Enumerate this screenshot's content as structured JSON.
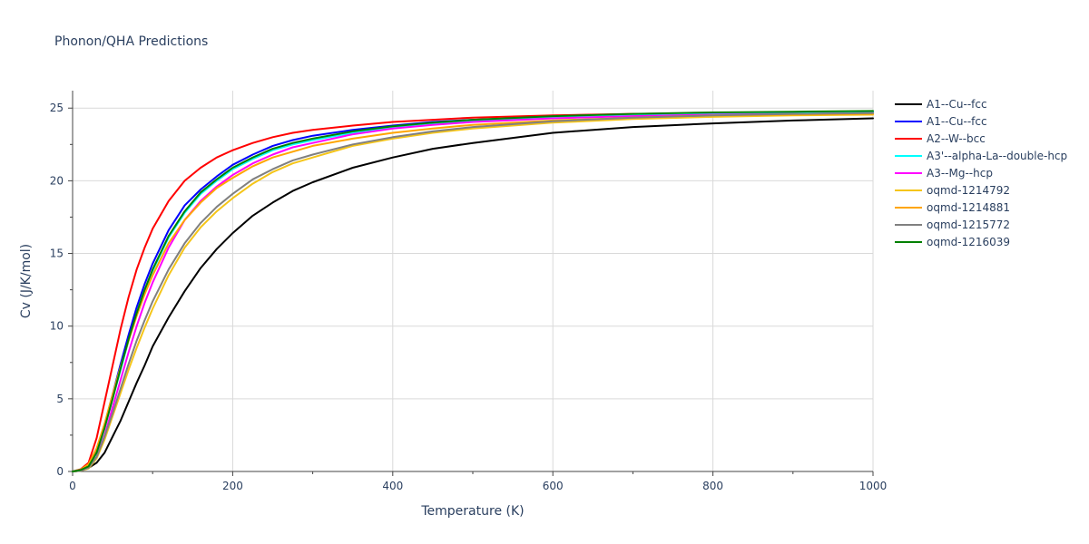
{
  "chart_data": {
    "type": "line",
    "title": "Phonon/QHA Predictions",
    "xlabel": "Temperature (K)",
    "ylabel": "Cv (J/K/mol)",
    "xlim": [
      0,
      1000
    ],
    "ylim": [
      0,
      26.2
    ],
    "xticks": [
      0,
      200,
      400,
      600,
      800,
      1000
    ],
    "xtick_labels": [
      "0",
      "200",
      "400",
      "600",
      "800",
      "1000"
    ],
    "yticks": [
      0,
      5,
      10,
      15,
      20,
      25
    ],
    "ytick_labels": [
      "0",
      "5",
      "10",
      "15",
      "20",
      "25"
    ],
    "grid": true,
    "legend_position": "right",
    "x": [
      0,
      10,
      20,
      30,
      40,
      50,
      60,
      70,
      80,
      90,
      100,
      120,
      140,
      160,
      180,
      200,
      225,
      250,
      275,
      300,
      350,
      400,
      450,
      500,
      600,
      700,
      800,
      900,
      1000
    ],
    "series": [
      {
        "name": "A1--Cu--fcc",
        "color": "#000000",
        "values": [
          0,
          0.05,
          0.25,
          0.6,
          1.3,
          2.4,
          3.5,
          4.8,
          6.1,
          7.3,
          8.6,
          10.6,
          12.4,
          14.0,
          15.3,
          16.4,
          17.6,
          18.5,
          19.3,
          19.9,
          20.9,
          21.6,
          22.2,
          22.6,
          23.3,
          23.7,
          23.95,
          24.15,
          24.3
        ]
      },
      {
        "name": "A1--Cu--fcc",
        "color": "#0000ff",
        "values": [
          0,
          0.1,
          0.35,
          1.4,
          3.2,
          5.3,
          7.4,
          9.4,
          11.3,
          12.9,
          14.3,
          16.6,
          18.3,
          19.4,
          20.3,
          21.1,
          21.8,
          22.4,
          22.8,
          23.1,
          23.5,
          23.8,
          24.05,
          24.2,
          24.4,
          24.55,
          24.65,
          24.7,
          24.75
        ]
      },
      {
        "name": "A2--W--bcc",
        "color": "#ff0000",
        "values": [
          0,
          0.15,
          0.6,
          2.3,
          4.8,
          7.3,
          9.8,
          12.0,
          13.9,
          15.4,
          16.7,
          18.6,
          20.0,
          20.9,
          21.6,
          22.1,
          22.6,
          23.0,
          23.3,
          23.5,
          23.8,
          24.05,
          24.2,
          24.35,
          24.5,
          24.6,
          24.65,
          24.7,
          24.72
        ]
      },
      {
        "name": "A3'--alpha-La--double-hcp",
        "color": "#00ffff",
        "values": [
          0,
          0.1,
          0.3,
          1.3,
          3.0,
          5.0,
          7.0,
          9.0,
          10.8,
          12.4,
          13.8,
          16.1,
          17.8,
          19.1,
          20.0,
          20.8,
          21.5,
          22.1,
          22.5,
          22.8,
          23.3,
          23.7,
          23.95,
          24.15,
          24.4,
          24.55,
          24.65,
          24.7,
          24.75
        ]
      },
      {
        "name": "A3--Mg--hcp",
        "color": "#ff00ff",
        "values": [
          0,
          0.08,
          0.25,
          1.0,
          2.5,
          4.4,
          6.3,
          8.2,
          10.0,
          11.6,
          13.0,
          15.4,
          17.3,
          18.6,
          19.6,
          20.4,
          21.2,
          21.8,
          22.3,
          22.6,
          23.2,
          23.6,
          23.85,
          24.05,
          24.3,
          24.45,
          24.55,
          24.6,
          24.65
        ]
      },
      {
        "name": "oqmd-1214792",
        "color": "#f5c518",
        "values": [
          0,
          0.05,
          0.2,
          0.9,
          2.2,
          3.8,
          5.4,
          7.0,
          8.5,
          9.9,
          11.2,
          13.5,
          15.4,
          16.8,
          17.9,
          18.8,
          19.8,
          20.6,
          21.2,
          21.6,
          22.4,
          22.9,
          23.3,
          23.6,
          24.0,
          24.25,
          24.4,
          24.5,
          24.55
        ]
      },
      {
        "name": "oqmd-1214881",
        "color": "#ffa500",
        "values": [
          0,
          0.12,
          0.5,
          1.6,
          3.3,
          5.3,
          7.2,
          9.0,
          10.7,
          12.2,
          13.5,
          15.7,
          17.3,
          18.5,
          19.5,
          20.2,
          21.0,
          21.6,
          22.0,
          22.4,
          22.9,
          23.3,
          23.6,
          23.85,
          24.15,
          24.35,
          24.5,
          24.55,
          24.6
        ]
      },
      {
        "name": "oqmd-1215772",
        "color": "#808080",
        "values": [
          0,
          0.05,
          0.25,
          1.0,
          2.4,
          4.0,
          5.7,
          7.4,
          9.0,
          10.4,
          11.7,
          13.9,
          15.7,
          17.1,
          18.2,
          19.1,
          20.1,
          20.8,
          21.4,
          21.8,
          22.5,
          23.0,
          23.4,
          23.7,
          24.1,
          24.35,
          24.5,
          24.6,
          24.65
        ]
      },
      {
        "name": "oqmd-1216039",
        "color": "#008000",
        "values": [
          0,
          0.1,
          0.35,
          1.3,
          3.0,
          5.0,
          7.1,
          9.1,
          10.9,
          12.5,
          13.9,
          16.2,
          17.9,
          19.2,
          20.1,
          20.9,
          21.6,
          22.2,
          22.6,
          22.9,
          23.4,
          23.75,
          24.0,
          24.2,
          24.45,
          24.6,
          24.7,
          24.75,
          24.8
        ]
      }
    ]
  }
}
